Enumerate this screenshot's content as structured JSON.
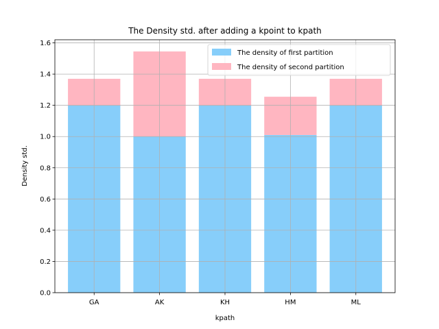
{
  "chart_data": {
    "type": "bar",
    "stacked": true,
    "title": "The Density std. after adding a kpoint to kpath",
    "xlabel": "kpath",
    "ylabel": "Density std.",
    "ylim": [
      0,
      1.62
    ],
    "yticks": [
      0.0,
      0.2,
      0.4,
      0.6,
      0.8,
      1.0,
      1.2,
      1.4,
      1.6
    ],
    "ytick_labels": [
      "0.0",
      "0.2",
      "0.4",
      "0.6",
      "0.8",
      "1.0",
      "1.2",
      "1.4",
      "1.6"
    ],
    "categories": [
      "GA",
      "AK",
      "KH",
      "HM",
      "ML"
    ],
    "grid": true,
    "legend_position": "top-right",
    "series": [
      {
        "name": "The density of first partition",
        "color": "#87CEFA",
        "values": [
          1.2,
          1.0,
          1.2,
          1.01,
          1.2
        ]
      },
      {
        "name": "The density of second partition",
        "color": "#FFB6C1",
        "values": [
          0.17,
          0.545,
          0.17,
          0.245,
          0.17
        ]
      }
    ]
  }
}
